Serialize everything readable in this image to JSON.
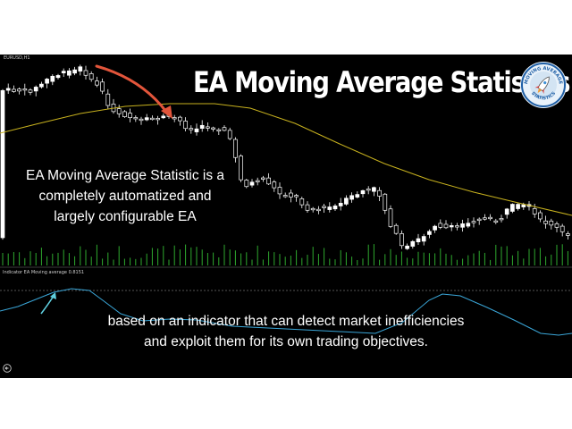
{
  "chart": {
    "symbol": "EURUSD,H1",
    "indicator_label": "Indicator EA Moving average 0.8151",
    "headline": "EA Moving Average Statistics",
    "description_top": [
      "EA Moving Average Statistic  is a",
      "completely automatized and",
      "largely configurable EA"
    ],
    "description_bottom": [
      "based on an indicator that can detect market inefficiencies",
      "and exploit them for its own trading objectives."
    ]
  },
  "logo": {
    "text_top": "MOVING AVERAGE",
    "text_bottom": "STATISTICS",
    "icon": "rocket-icon"
  },
  "colors": {
    "background": "#000000",
    "bull_candle": "#ffffff",
    "bear_candle": "#000000",
    "moving_average": "#c8b21e",
    "indicator_line": "#3aa6d8",
    "volume": "#2faa2f",
    "arrow_red": "#e2553b",
    "arrow_cyan": "#5fd0e0",
    "headline": "#ffffff",
    "logo_ring": "#1f5fa6"
  },
  "nav": {
    "icon": "back-arrow-icon"
  }
}
